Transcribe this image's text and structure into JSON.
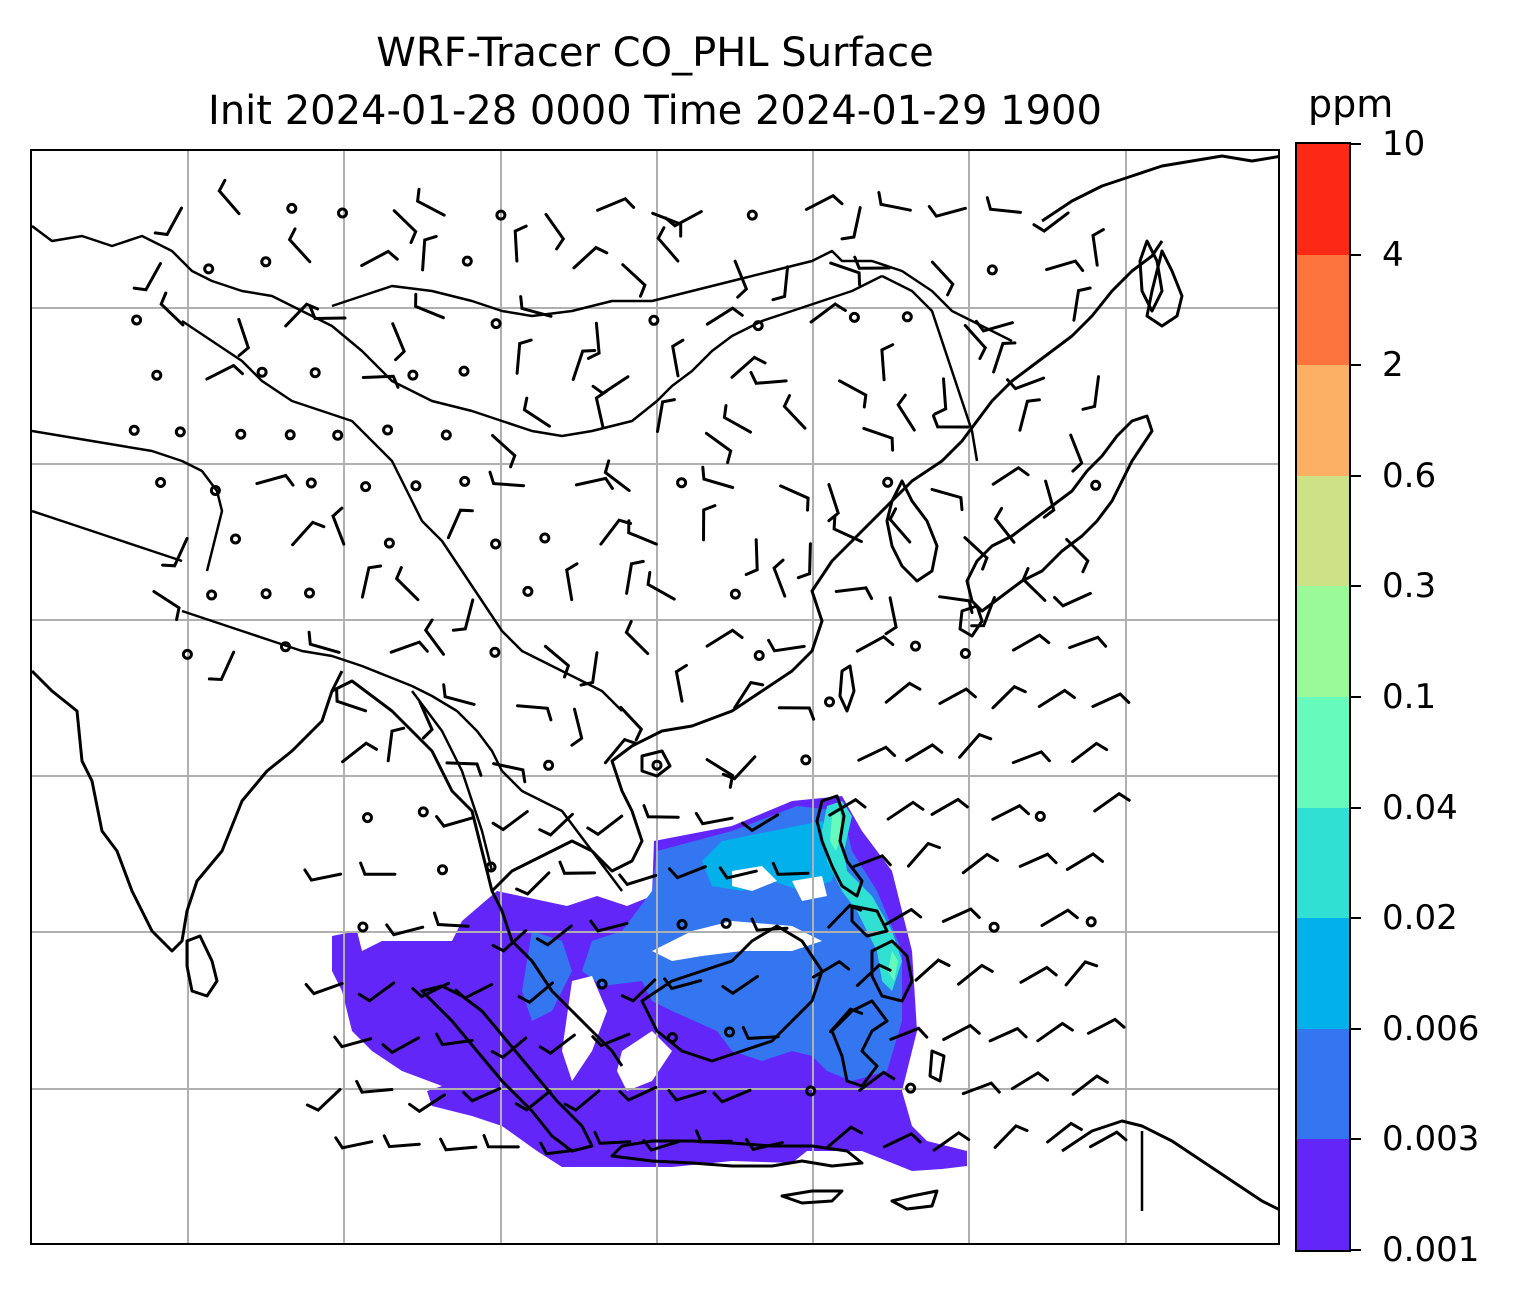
{
  "map": {
    "title_line1": "WRF-Tracer CO_PHL Surface",
    "title_line2": "Init 2024-01-28 0000 Time 2024-01-29 1900",
    "colorbar": {
      "unit": "ppm",
      "levels": [
        "0.001",
        "0.003",
        "0.006",
        "0.02",
        "0.04",
        "0.1",
        "0.3",
        "0.6",
        "2",
        "4",
        "10"
      ],
      "colors": [
        "#6326f8",
        "#3476f0",
        "#02b0eb",
        "#2fe0d3",
        "#66fbbd",
        "#9afa9a",
        "#cde187",
        "#fcb065",
        "#fc733d",
        "#fc2916"
      ]
    },
    "gridline_color": "#b0b0b0",
    "coastline_color": "#000000",
    "features": [
      "coastlines",
      "country-borders",
      "lat-lon-gridlines",
      "wind-barbs",
      "calm-wind-circles",
      "tracer-concentration-shading"
    ]
  }
}
